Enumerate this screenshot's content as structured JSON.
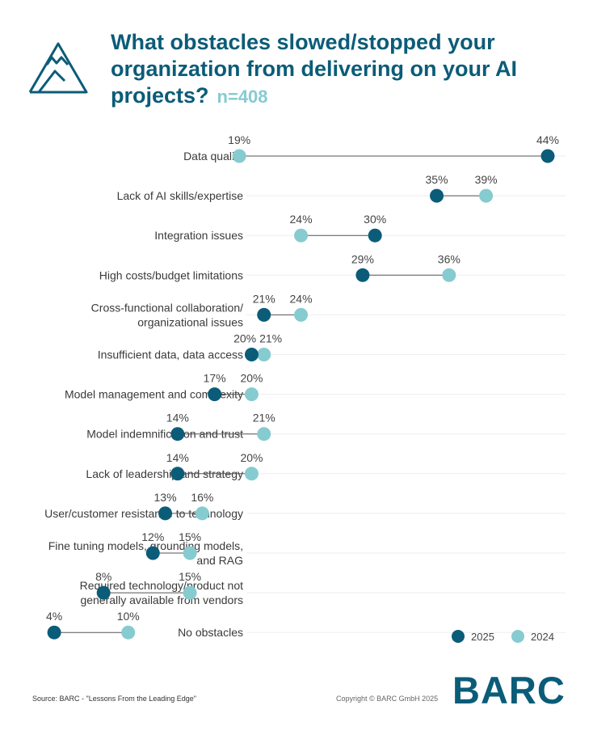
{
  "header": {
    "title": "What obstacles slowed/stopped your organization from delivering on your AI projects?",
    "sample": "n=408"
  },
  "colors": {
    "y2025": "#0b5c78",
    "y2024": "#86cbd0",
    "connector": "#555555",
    "title": "#0b5c78"
  },
  "chart_data": {
    "type": "dot",
    "title": "What obstacles slowed/stopped your organization from delivering on your AI projects?",
    "xlim": [
      0,
      44
    ],
    "series": [
      {
        "name": "2025",
        "values": [
          44,
          35,
          30,
          29,
          21,
          20,
          17,
          14,
          14,
          13,
          12,
          8,
          4
        ]
      },
      {
        "name": "2024",
        "values": [
          19,
          39,
          24,
          36,
          24,
          21,
          20,
          21,
          20,
          16,
          15,
          15,
          10
        ]
      }
    ],
    "categories": [
      [
        "Data quality"
      ],
      [
        "Lack of AI skills/expertise"
      ],
      [
        "Integration issues"
      ],
      [
        "High costs/budget limitations"
      ],
      [
        "Cross-functional collaboration/",
        "organizational issues"
      ],
      [
        "Insufficient data, data access"
      ],
      [
        "Model management and complexity"
      ],
      [
        "Model indemnification and trust"
      ],
      [
        "Lack of leadership and strategy"
      ],
      [
        "User/customer resistance to technology"
      ],
      [
        "Fine tuning models, grounding models,",
        "and RAG"
      ],
      [
        "Required technology/product not",
        "generally available from vendors"
      ],
      [
        "No obstacles"
      ]
    ],
    "value_labels": {
      "2025": [
        "44%",
        "35%",
        "30%",
        "29%",
        "21%",
        "20%",
        "17%",
        "14%",
        "14%",
        "13%",
        "12%",
        "8%",
        "4%"
      ],
      "2024": [
        "19%",
        "39%",
        "24%",
        "36%",
        "24%",
        "21%",
        "20%",
        "21%",
        "20%",
        "16%",
        "15%",
        "15%",
        "10%"
      ]
    },
    "legend": [
      "2025",
      "2024"
    ],
    "legend_position": "bottom-right"
  },
  "footer": {
    "source": "Source: BARC - \"Lessons From the Leading Edge\"",
    "copyright": "Copyright © BARC GmbH 2025",
    "brand": "BARC"
  }
}
